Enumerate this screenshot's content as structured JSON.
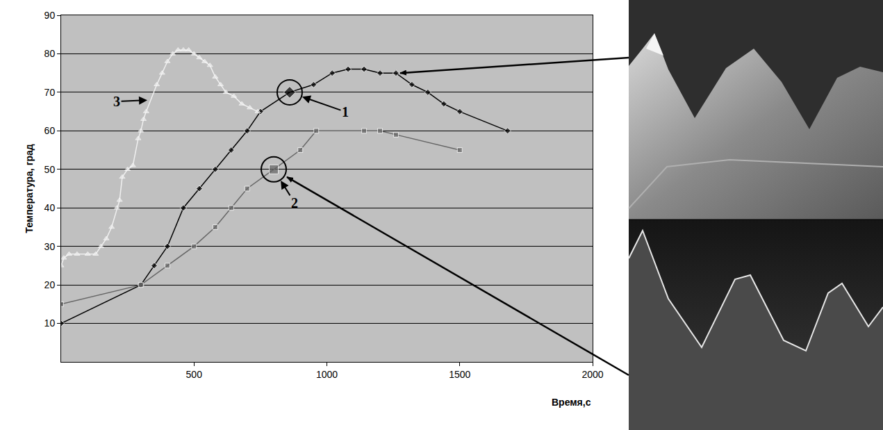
{
  "chart_data": {
    "type": "line",
    "x_label": "Время,с",
    "y_label": "Температура, град",
    "xlim": [
      0,
      2000
    ],
    "xticks": [
      500,
      1000,
      1500,
      2000
    ],
    "ylim": [
      0,
      90
    ],
    "yticks": [
      10,
      20,
      30,
      40,
      50,
      60,
      70,
      80,
      90
    ],
    "grid": true,
    "series": [
      {
        "name": "1",
        "color": "#000000",
        "marker": "diamond",
        "x": [
          0,
          300,
          350,
          400,
          460,
          520,
          580,
          640,
          700,
          750,
          860,
          950,
          1020,
          1080,
          1140,
          1200,
          1260,
          1320,
          1380,
          1440,
          1500,
          1680
        ],
        "values": [
          10,
          20,
          25,
          30,
          40,
          45,
          50,
          55,
          60,
          65,
          70,
          72,
          75,
          76,
          76,
          75,
          75,
          72,
          70,
          67,
          65,
          60
        ]
      },
      {
        "name": "2",
        "color": "#666666",
        "marker": "square",
        "x": [
          0,
          300,
          400,
          500,
          580,
          640,
          700,
          800,
          900,
          960,
          1140,
          1200,
          1260,
          1500
        ],
        "values": [
          15,
          20,
          25,
          30,
          35,
          40,
          45,
          50,
          55,
          60,
          60,
          60,
          59,
          55
        ]
      },
      {
        "name": "3",
        "color": "#f0f0f0",
        "marker": "triangle-up",
        "x": [
          0,
          10,
          30,
          60,
          100,
          130,
          150,
          170,
          190,
          210,
          220,
          230,
          250,
          270,
          290,
          300,
          310,
          320,
          360,
          380,
          400,
          420,
          440,
          460,
          480,
          500,
          520,
          540,
          560,
          580,
          600,
          620,
          650,
          680,
          710,
          740
        ],
        "values": [
          25,
          27,
          28,
          28,
          28,
          28,
          30,
          32,
          35,
          40,
          42,
          48,
          50,
          51,
          58,
          60,
          63,
          65,
          72,
          75,
          78,
          80,
          81,
          81,
          81,
          80,
          79,
          78,
          77,
          74,
          72,
          70,
          69,
          67,
          66,
          65
        ]
      }
    ],
    "annotations": [
      {
        "text": "1",
        "x": 860,
        "y": 70
      },
      {
        "text": "2",
        "x": 800,
        "y": 50
      },
      {
        "text": "3",
        "x": 340,
        "y": 68
      }
    ]
  }
}
